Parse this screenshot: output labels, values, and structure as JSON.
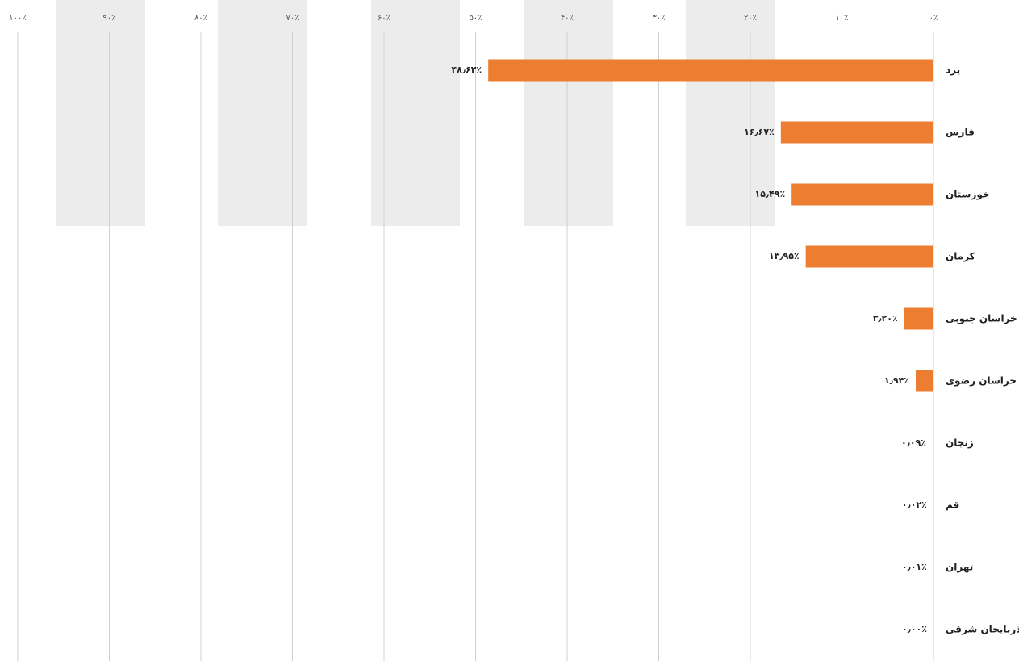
{
  "chart_data": {
    "type": "bar",
    "orientation": "horizontal",
    "reversed": true,
    "categories": [
      "یزد",
      "فارس",
      "خوزستان",
      "کرمان",
      "خراسان جنوبی",
      "خراسان رضوی",
      "زنجان",
      "قم",
      "تهران",
      "آذربایجان شرقی"
    ],
    "values": [
      48.62,
      16.67,
      15.49,
      13.95,
      3.2,
      1.94,
      0.09,
      0.02,
      0.01,
      0.0
    ],
    "value_labels": [
      "۴۸٫۶۲٪",
      "۱۶٫۶۷٪",
      "۱۵٫۴۹٪",
      "۱۳٫۹۵٪",
      "۳٫۲۰٪",
      "۱٫۹۴٪",
      "۰٫۰۹٪",
      "۰٫۰۲٪",
      "۰٫۰۱٪",
      "۰٫۰۰٪"
    ],
    "color": "#ed7d31",
    "xlim": [
      0,
      100
    ],
    "xticks": [
      {
        "value": 0,
        "label": "۰٪"
      },
      {
        "value": 10,
        "label": "۱۰٪"
      },
      {
        "value": 20,
        "label": "۲۰٪"
      },
      {
        "value": 30,
        "label": "۳۰٪"
      },
      {
        "value": 40,
        "label": "۴۰٪"
      },
      {
        "value": 50,
        "label": "۵۰٪"
      },
      {
        "value": 60,
        "label": "۶۰٪"
      },
      {
        "value": 70,
        "label": "۷۰٪"
      },
      {
        "value": 80,
        "label": "۸۰٪"
      },
      {
        "value": 90,
        "label": "۹۰٪"
      },
      {
        "value": 100,
        "label": "۱۰۰٪"
      }
    ],
    "grid": true
  }
}
